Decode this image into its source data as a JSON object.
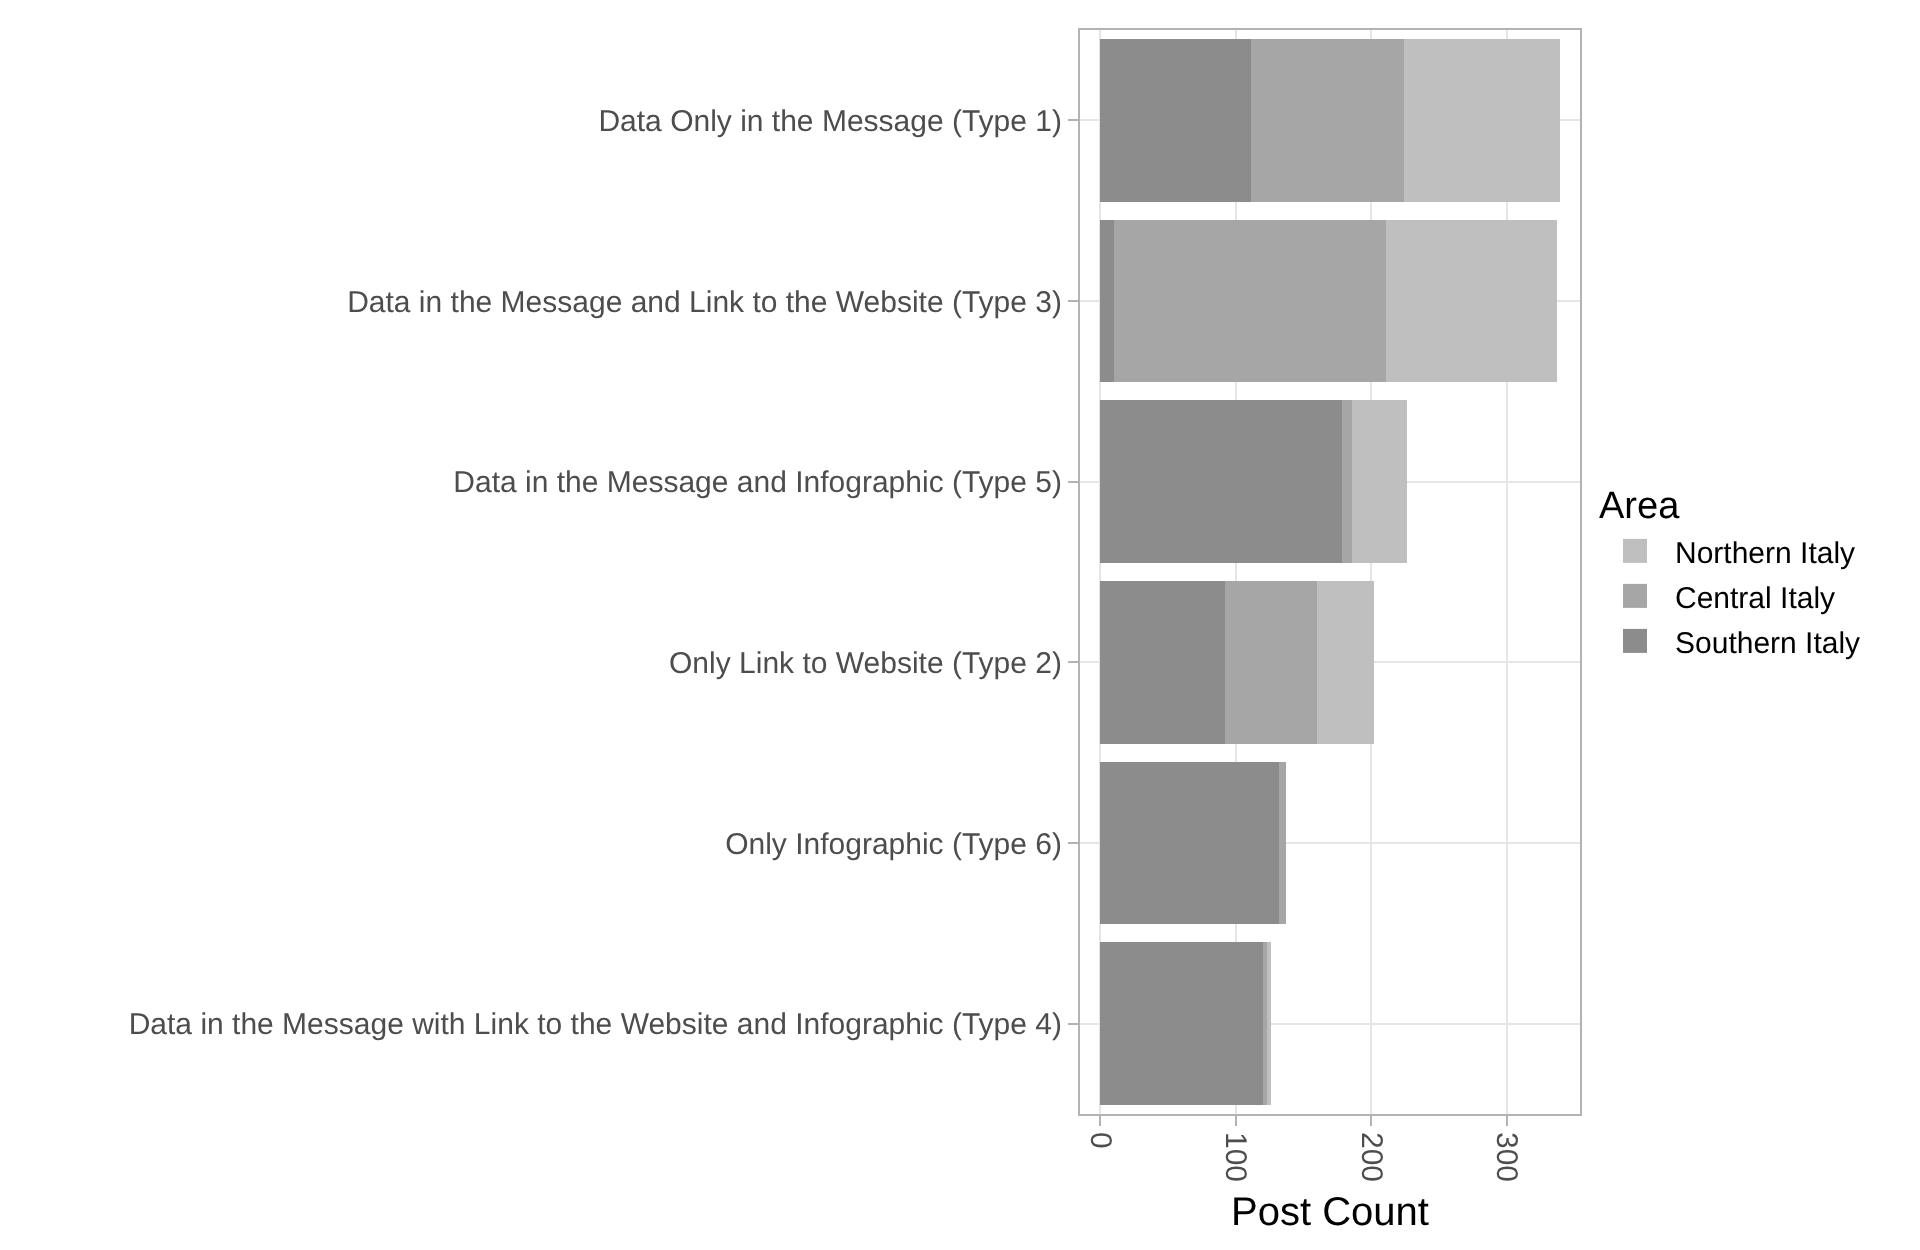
{
  "chart_data": {
    "type": "bar",
    "orientation": "horizontal",
    "stacked": true,
    "categories": [
      "Data Only in the Message (Type 1)",
      "Data in the Message and Link to the Website (Type 3)",
      "Data in the Message and Infographic (Type 5)",
      "Only Link to Website (Type 2)",
      "Only Infographic (Type 6)",
      "Data in the Message with Link to the Website and Infographic (Type 4)"
    ],
    "series": [
      {
        "name": "Southern Italy",
        "color": "#8c8c8c",
        "values": [
          111,
          10,
          178,
          92,
          132,
          120
        ]
      },
      {
        "name": "Central Italy",
        "color": "#a6a6a6",
        "values": [
          113,
          201,
          8,
          68,
          5,
          3
        ]
      },
      {
        "name": "Northern Italy",
        "color": "#bfbfbf",
        "values": [
          115,
          126,
          40,
          42,
          0,
          3
        ]
      }
    ],
    "xlabel": "Post Count",
    "legend_title": "Area",
    "legend": "right",
    "xlim": [
      -15,
      354
    ],
    "xticks": [
      0,
      100,
      200,
      300
    ],
    "grid": true
  }
}
